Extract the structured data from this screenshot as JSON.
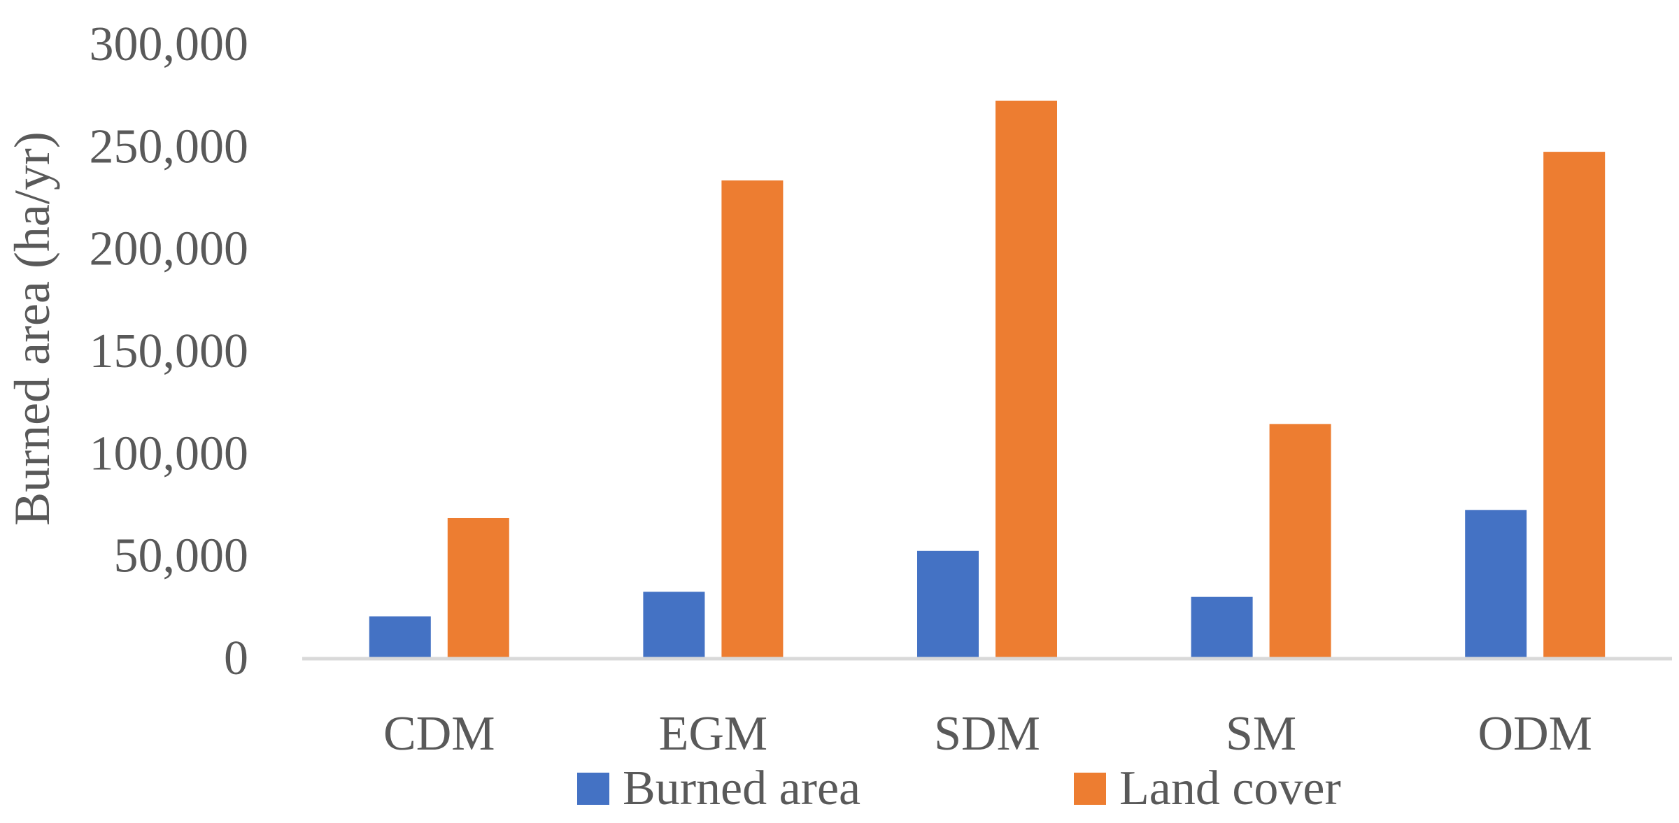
{
  "chart_data": {
    "type": "bar",
    "title": "",
    "xlabel": "",
    "ylabel": "Burned area (ha/yr)",
    "ylim": [
      0,
      300000
    ],
    "yticks": [
      0,
      50000,
      100000,
      150000,
      200000,
      250000,
      300000
    ],
    "ytick_labels": [
      "0",
      "50,000",
      "100,000",
      "150,000",
      "200,000",
      "250,000",
      "300,000"
    ],
    "categories": [
      "CDM",
      "EGM",
      "SDM",
      "SM",
      "ODM"
    ],
    "series": [
      {
        "name": "Burned area",
        "color": "#4472C4",
        "values": [
          20000,
          32000,
          52000,
          29500,
          72000
        ]
      },
      {
        "name": "Land cover",
        "color": "#ED7D31",
        "values": [
          68000,
          233000,
          272000,
          114000,
          247000
        ]
      }
    ],
    "grid": false,
    "legend": "bottom"
  }
}
